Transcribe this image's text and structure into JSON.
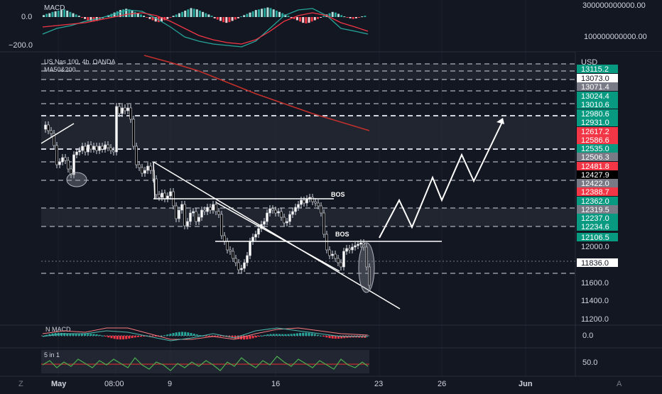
{
  "macd_pane": {
    "label": "MACD",
    "left_ticks": [
      "0.0",
      "−200.0"
    ],
    "right_ticks": [
      "300000000000.00",
      "100000000000.00"
    ]
  },
  "main_header": {
    "symbol": "US Nas 100, 4h, OANDA",
    "indicator": "MA50&200",
    "currency": "USD"
  },
  "price_scale": {
    "ticks": [
      "12000.0",
      "11600.0",
      "11400.0",
      "11200.0"
    ],
    "levels": [
      {
        "value": "13115.2",
        "color": "#089981"
      },
      {
        "value": "13073.0",
        "color": "#ffffff"
      },
      {
        "value": "13071.4",
        "color": "#787b86"
      },
      {
        "value": "13024.4",
        "color": "#089981"
      },
      {
        "value": "13010.6",
        "color": "#089981"
      },
      {
        "value": "12980.6",
        "color": "#089981"
      },
      {
        "value": "12931.0",
        "color": "#089981"
      },
      {
        "value": "12617.2",
        "color": "#f23645"
      },
      {
        "value": "12586.6",
        "color": "#f23645"
      },
      {
        "value": "12535.0",
        "color": "#089981"
      },
      {
        "value": "12506.3",
        "color": "#787b86"
      },
      {
        "value": "12481.8",
        "color": "#f23645"
      },
      {
        "value": "12427.9",
        "color": "#000000"
      },
      {
        "value": "12422.0",
        "color": "#787b86"
      },
      {
        "value": "12388.7",
        "color": "#f23645"
      },
      {
        "value": "12362.0",
        "color": "#089981"
      },
      {
        "value": "12319.5",
        "color": "#787b86"
      },
      {
        "value": "12237.0",
        "color": "#089981"
      },
      {
        "value": "12234.6",
        "color": "#089981"
      },
      {
        "value": "12106.5",
        "color": "#089981"
      },
      {
        "value": "11836.0",
        "color": "#ffffff"
      }
    ]
  },
  "annotations": {
    "bos_upper": "BOS",
    "bos_lower": "BOS"
  },
  "nmacd_pane": {
    "label": "N MACD",
    "right_tick": "0.0"
  },
  "five_pane": {
    "label": "5 in 1",
    "right_tick": "50.0"
  },
  "time_axis": {
    "labels": [
      "May",
      "08:00",
      "9",
      "16",
      "23",
      "26",
      "Jun"
    ],
    "left_icon": "Z",
    "right_icon": "A"
  },
  "chart_data": {
    "type": "candlestick",
    "symbol": "US Nas 100",
    "timeframe": "4h",
    "source": "OANDA",
    "y_unit": "USD",
    "x": [
      "May",
      "08:00",
      "9",
      "16",
      "23",
      "26",
      "Jun"
    ],
    "y_ticks": [
      12000.0,
      11600.0,
      11400.0,
      11200.0
    ],
    "price_labels": [
      13115.2,
      13073.0,
      13071.4,
      13024.4,
      13010.6,
      12980.6,
      12931.0,
      12617.2,
      12586.6,
      12535.0,
      12506.3,
      12481.8,
      12427.9,
      12422.0,
      12388.7,
      12362.0,
      12319.5,
      12237.0,
      12234.6,
      12106.5,
      11836.0
    ],
    "last_price": 11836.0,
    "annotations": [
      "BOS",
      "BOS"
    ],
    "indicators": [
      "MACD",
      "MA50&200",
      "N MACD",
      "5 in 1"
    ]
  }
}
